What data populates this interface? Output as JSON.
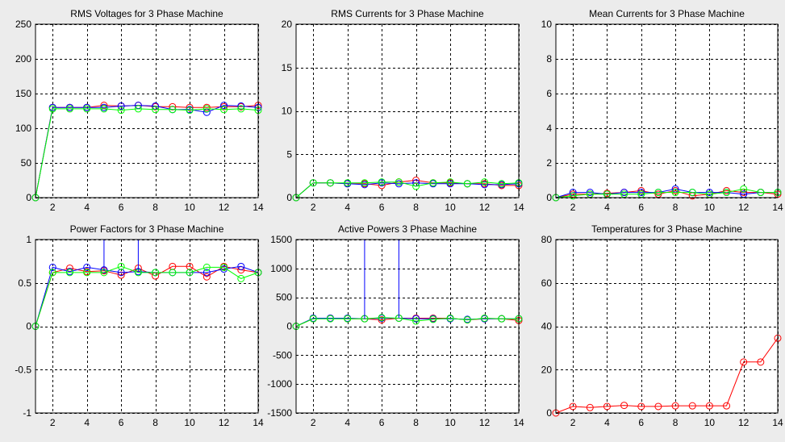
{
  "window": {
    "background": "#ececec"
  },
  "colors": {
    "red": "#ff0000",
    "green": "#00ff00",
    "blue": "#0000ff"
  },
  "chart_data": [
    {
      "type": "line",
      "title": "RMS Voltages for 3 Phase Machine",
      "xlim": [
        1,
        14
      ],
      "ylim": [
        0,
        250
      ],
      "xticks": [
        2,
        4,
        6,
        8,
        10,
        12,
        14
      ],
      "yticks": [
        0,
        50,
        100,
        150,
        200,
        250
      ],
      "ytick_labels": [
        "0",
        "50",
        "100",
        "150",
        "200",
        "250"
      ],
      "grid": true,
      "x": [
        1,
        2,
        3,
        4,
        5,
        6,
        7,
        8,
        9,
        10,
        11,
        12,
        13,
        14
      ],
      "series": [
        {
          "color": "#ff0000",
          "values": [
            0,
            130,
            130,
            130,
            133,
            132,
            133,
            131,
            131,
            130,
            130,
            131,
            131,
            133
          ]
        },
        {
          "color": "#0000ff",
          "values": [
            0,
            130,
            130,
            130,
            130,
            132,
            133,
            132,
            127,
            127,
            123,
            133,
            132,
            130
          ]
        },
        {
          "color": "#00ff00",
          "values": [
            0,
            128,
            128,
            128,
            128,
            126,
            128,
            127,
            127,
            126,
            128,
            127,
            128,
            126
          ]
        }
      ]
    },
    {
      "type": "line",
      "title": "RMS Currents for 3 Phase Machine",
      "xlim": [
        1,
        14
      ],
      "ylim": [
        0,
        20
      ],
      "xticks": [
        2,
        4,
        6,
        8,
        10,
        12,
        14
      ],
      "yticks": [
        0,
        5,
        10,
        15,
        20
      ],
      "ytick_labels": [
        "0",
        "5",
        "10",
        "15",
        "20"
      ],
      "grid": true,
      "x": [
        1,
        2,
        3,
        4,
        5,
        6,
        7,
        8,
        9,
        10,
        11,
        12,
        13,
        14
      ],
      "series": [
        {
          "color": "#ff0000",
          "values": [
            0,
            1.7,
            1.7,
            1.6,
            1.6,
            1.4,
            1.8,
            2.0,
            1.7,
            1.7,
            1.6,
            1.6,
            1.4,
            1.4
          ]
        },
        {
          "color": "#0000ff",
          "values": [
            0,
            1.7,
            1.7,
            1.6,
            1.5,
            1.7,
            1.6,
            1.7,
            1.6,
            1.6,
            1.6,
            1.5,
            1.5,
            1.6
          ]
        },
        {
          "color": "#00ff00",
          "values": [
            0,
            1.7,
            1.7,
            1.7,
            1.7,
            1.8,
            1.8,
            1.3,
            1.7,
            1.8,
            1.6,
            1.8,
            1.6,
            1.7
          ]
        }
      ]
    },
    {
      "type": "line",
      "title": "Mean Currents for 3 Phase Machine",
      "xlim": [
        1,
        14
      ],
      "ylim": [
        0,
        10
      ],
      "xticks": [
        2,
        4,
        6,
        8,
        10,
        12,
        14
      ],
      "yticks": [
        0,
        2,
        4,
        6,
        8,
        10
      ],
      "ytick_labels": [
        "0",
        "2",
        "4",
        "6",
        "8",
        "10"
      ],
      "grid": true,
      "x": [
        1,
        2,
        3,
        4,
        5,
        6,
        7,
        8,
        9,
        10,
        11,
        12,
        13,
        14
      ],
      "series": [
        {
          "color": "#ff0000",
          "values": [
            0,
            0.2,
            0.2,
            0.25,
            0.3,
            0.4,
            0.2,
            0.4,
            0.1,
            0.2,
            0.4,
            0.3,
            0.3,
            0.2
          ]
        },
        {
          "color": "#0000ff",
          "values": [
            0,
            0.3,
            0.3,
            0.2,
            0.3,
            0.3,
            0.3,
            0.5,
            0.3,
            0.3,
            0.3,
            0.2,
            0.3,
            0.3
          ]
        },
        {
          "color": "#00ff00",
          "values": [
            0,
            0.1,
            0.2,
            0.2,
            0.2,
            0.2,
            0.3,
            0.3,
            0.3,
            0.2,
            0.3,
            0.5,
            0.3,
            0.3
          ]
        }
      ]
    },
    {
      "type": "line",
      "title": "Power Factors for 3 Phase Machine",
      "xlim": [
        1,
        14
      ],
      "ylim": [
        -1,
        1
      ],
      "xticks": [
        2,
        4,
        6,
        8,
        10,
        12,
        14
      ],
      "yticks": [
        -1,
        -0.5,
        0,
        0.5,
        1
      ],
      "ytick_labels": [
        "-1",
        "-0.5",
        "0",
        "0.5",
        "1"
      ],
      "grid": true,
      "x": [
        1,
        2,
        3,
        4,
        5,
        6,
        7,
        8,
        9,
        10,
        11,
        12,
        13,
        14
      ],
      "series": [
        {
          "color": "#ff0000",
          "values": [
            0,
            0.62,
            0.67,
            0.63,
            0.64,
            0.59,
            0.67,
            0.58,
            0.69,
            0.69,
            0.57,
            0.69,
            0.65,
            0.62
          ]
        },
        {
          "color": "#0000ff",
          "values": [
            0,
            0.68,
            0.63,
            0.68,
            0.65,
            0.62,
            0.63,
            0.62,
            0.62,
            0.62,
            0.62,
            0.66,
            0.69,
            0.62
          ]
        },
        {
          "color": "#00ff00",
          "values": [
            0,
            0.62,
            0.62,
            0.62,
            0.62,
            0.69,
            0.62,
            0.62,
            0.62,
            0.62,
            0.68,
            0.68,
            0.55,
            0.62
          ]
        }
      ],
      "spikes": [
        {
          "color": "#0000ff",
          "x": 5,
          "y0": 0.64,
          "y1": 1
        },
        {
          "color": "#0000ff",
          "x": 7,
          "y0": 0.63,
          "y1": 1
        }
      ]
    },
    {
      "type": "line",
      "title": "Active Powers 3 Phase Machine",
      "xlim": [
        1,
        14
      ],
      "ylim": [
        -1500,
        1500
      ],
      "xticks": [
        2,
        4,
        6,
        8,
        10,
        12,
        14
      ],
      "yticks": [
        -1500,
        -1000,
        -500,
        0,
        500,
        1000,
        1500
      ],
      "ytick_labels": [
        "-1500",
        "-1000",
        "-500",
        "0",
        "500",
        "1000",
        "1500"
      ],
      "grid": true,
      "x": [
        1,
        2,
        3,
        4,
        5,
        6,
        7,
        8,
        9,
        10,
        11,
        12,
        13,
        14
      ],
      "series": [
        {
          "color": "#ff0000",
          "values": [
            0,
            130,
            140,
            130,
            130,
            110,
            140,
            140,
            140,
            140,
            110,
            130,
            130,
            100
          ]
        },
        {
          "color": "#0000ff",
          "values": [
            0,
            140,
            140,
            140,
            130,
            140,
            140,
            130,
            130,
            130,
            120,
            130,
            130,
            130
          ]
        },
        {
          "color": "#00ff00",
          "values": [
            0,
            130,
            130,
            130,
            130,
            150,
            140,
            90,
            120,
            140,
            110,
            140,
            130,
            130
          ]
        }
      ],
      "spikes": [
        {
          "color": "#0000ff",
          "x": 5,
          "y0": 130,
          "y1": 1500
        },
        {
          "color": "#0000ff",
          "x": 7,
          "y0": 140,
          "y1": 1500
        }
      ]
    },
    {
      "type": "line",
      "title": "Temperatures for 3 Phase Machine",
      "xlim": [
        1,
        14
      ],
      "ylim": [
        0,
        80
      ],
      "xticks": [
        2,
        4,
        6,
        8,
        10,
        12,
        14
      ],
      "yticks": [
        0,
        20,
        40,
        60,
        80
      ],
      "ytick_labels": [
        "0",
        "20",
        "40",
        "60",
        "80"
      ],
      "grid": true,
      "x": [
        1,
        2,
        3,
        4,
        5,
        6,
        7,
        8,
        9,
        10,
        11,
        12,
        13,
        14
      ],
      "series": [
        {
          "color": "#ff0000",
          "values": [
            0,
            3,
            2.5,
            3,
            3.5,
            3,
            3,
            3.3,
            3.3,
            3.3,
            3.3,
            23.5,
            23.5,
            34.5
          ]
        }
      ]
    }
  ]
}
